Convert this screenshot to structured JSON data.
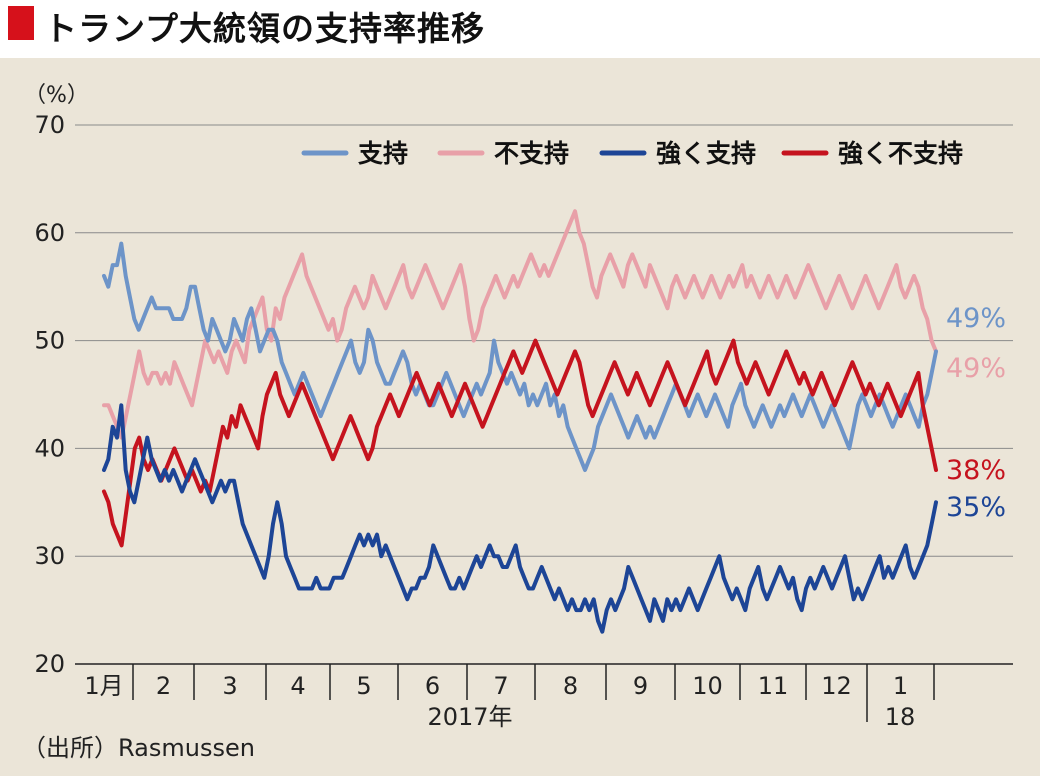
{
  "header": {
    "title": "トランプ大統領の支持率推移"
  },
  "source": "（出所）Rasmussen",
  "chart_data": {
    "type": "line",
    "title": "トランプ大統領の支持率推移",
    "unit_label": "（%）",
    "ylim": [
      20,
      70
    ],
    "y_ticks": [
      20,
      30,
      40,
      50,
      60,
      70
    ],
    "x_month_labels": [
      "1月",
      "2",
      "3",
      "4",
      "5",
      "6",
      "7",
      "8",
      "9",
      "10",
      "11",
      "12",
      "1"
    ],
    "x_year_labels": [
      "2017年",
      "18"
    ],
    "grid": true,
    "legend_position": "top-right",
    "series": [
      {
        "name": "支持",
        "color": "#6d94c8",
        "end_label": "49%",
        "values": [
          56,
          55,
          57,
          57,
          59,
          56,
          54,
          52,
          51,
          52,
          53,
          54,
          53,
          53,
          53,
          53,
          52,
          52,
          52,
          53,
          55,
          55,
          53,
          51,
          50,
          52,
          51,
          50,
          49,
          50,
          52,
          51,
          50,
          52,
          53,
          51,
          49,
          50,
          51,
          51,
          50,
          48,
          47,
          46,
          45,
          46,
          47,
          46,
          45,
          44,
          43,
          44,
          45,
          46,
          47,
          48,
          49,
          50,
          48,
          47,
          48,
          51,
          50,
          48,
          47,
          46,
          46,
          47,
          48,
          49,
          48,
          46,
          45,
          46,
          45,
          44,
          44,
          45,
          46,
          47,
          46,
          45,
          44,
          43,
          44,
          45,
          46,
          45,
          46,
          47,
          50,
          48,
          47,
          46,
          47,
          46,
          45,
          46,
          44,
          45,
          44,
          45,
          46,
          44,
          45,
          43,
          44,
          42,
          41,
          40,
          39,
          38,
          39,
          40,
          42,
          43,
          44,
          45,
          44,
          43,
          42,
          41,
          42,
          43,
          42,
          41,
          42,
          41,
          42,
          43,
          44,
          45,
          46,
          45,
          44,
          43,
          44,
          45,
          44,
          43,
          44,
          45,
          44,
          43,
          42,
          44,
          45,
          46,
          44,
          43,
          42,
          43,
          44,
          43,
          42,
          43,
          44,
          43,
          44,
          45,
          44,
          43,
          44,
          45,
          44,
          43,
          42,
          43,
          44,
          43,
          42,
          41,
          40,
          42,
          44,
          45,
          44,
          43,
          44,
          45,
          44,
          43,
          42,
          43,
          44,
          45,
          44,
          43,
          42,
          44,
          45,
          47,
          49
        ]
      },
      {
        "name": "不支持",
        "color": "#e8a0a8",
        "end_label": "49%",
        "values": [
          44,
          44,
          43,
          42,
          41,
          43,
          45,
          47,
          49,
          47,
          46,
          47,
          47,
          46,
          47,
          46,
          48,
          47,
          46,
          45,
          44,
          46,
          48,
          50,
          49,
          48,
          49,
          48,
          47,
          49,
          50,
          49,
          48,
          51,
          52,
          53,
          54,
          51,
          50,
          53,
          52,
          54,
          55,
          56,
          57,
          58,
          56,
          55,
          54,
          53,
          52,
          51,
          52,
          50,
          51,
          53,
          54,
          55,
          54,
          53,
          54,
          56,
          55,
          54,
          53,
          54,
          55,
          56,
          57,
          55,
          54,
          55,
          56,
          57,
          56,
          55,
          54,
          53,
          54,
          55,
          56,
          57,
          55,
          52,
          50,
          51,
          53,
          54,
          55,
          56,
          55,
          54,
          55,
          56,
          55,
          56,
          57,
          58,
          57,
          56,
          57,
          56,
          57,
          58,
          59,
          60,
          61,
          62,
          60,
          59,
          57,
          55,
          54,
          56,
          57,
          58,
          57,
          56,
          55,
          57,
          58,
          57,
          56,
          55,
          57,
          56,
          55,
          54,
          53,
          55,
          56,
          55,
          54,
          55,
          56,
          55,
          54,
          55,
          56,
          55,
          54,
          55,
          56,
          55,
          56,
          57,
          55,
          56,
          55,
          54,
          55,
          56,
          55,
          54,
          55,
          56,
          55,
          54,
          55,
          56,
          57,
          56,
          55,
          54,
          53,
          54,
          55,
          56,
          55,
          54,
          53,
          54,
          55,
          56,
          55,
          54,
          53,
          54,
          55,
          56,
          57,
          55,
          54,
          55,
          56,
          55,
          53,
          52,
          50,
          49
        ]
      },
      {
        "name": "強く支持",
        "color": "#1d4596",
        "end_label": "35%",
        "values": [
          38,
          39,
          42,
          41,
          44,
          38,
          36,
          35,
          37,
          39,
          41,
          39,
          38,
          37,
          38,
          37,
          38,
          37,
          36,
          37,
          38,
          39,
          38,
          37,
          36,
          35,
          36,
          37,
          36,
          37,
          37,
          35,
          33,
          32,
          31,
          30,
          29,
          28,
          30,
          33,
          35,
          33,
          30,
          29,
          28,
          27,
          27,
          27,
          27,
          28,
          27,
          27,
          27,
          28,
          28,
          28,
          29,
          30,
          31,
          32,
          31,
          32,
          31,
          32,
          30,
          31,
          30,
          29,
          28,
          27,
          26,
          27,
          27,
          28,
          28,
          29,
          31,
          30,
          29,
          28,
          27,
          27,
          28,
          27,
          28,
          29,
          30,
          29,
          30,
          31,
          30,
          30,
          29,
          29,
          30,
          31,
          29,
          28,
          27,
          27,
          28,
          29,
          28,
          27,
          26,
          27,
          26,
          25,
          26,
          25,
          25,
          26,
          25,
          26,
          24,
          23,
          25,
          26,
          25,
          26,
          27,
          29,
          28,
          27,
          26,
          25,
          24,
          26,
          25,
          24,
          26,
          25,
          26,
          25,
          26,
          27,
          26,
          25,
          26,
          27,
          28,
          29,
          30,
          28,
          27,
          26,
          27,
          26,
          25,
          27,
          28,
          29,
          27,
          26,
          27,
          28,
          29,
          28,
          27,
          28,
          26,
          25,
          27,
          28,
          27,
          28,
          29,
          28,
          27,
          28,
          29,
          30,
          28,
          26,
          27,
          26,
          27,
          28,
          29,
          30,
          28,
          29,
          28,
          29,
          30,
          31,
          29,
          28,
          29,
          30,
          31,
          33,
          35
        ]
      },
      {
        "name": "強く不支持",
        "color": "#c5131e",
        "end_label": "38%",
        "values": [
          36,
          35,
          33,
          32,
          31,
          34,
          37,
          40,
          41,
          39,
          38,
          39,
          38,
          37,
          38,
          39,
          40,
          39,
          38,
          37,
          38,
          37,
          36,
          37,
          36,
          38,
          40,
          42,
          41,
          43,
          42,
          44,
          43,
          42,
          41,
          40,
          43,
          45,
          46,
          47,
          45,
          44,
          43,
          44,
          45,
          46,
          45,
          44,
          43,
          42,
          41,
          40,
          39,
          40,
          41,
          42,
          43,
          42,
          41,
          40,
          39,
          40,
          42,
          43,
          44,
          45,
          44,
          43,
          44,
          45,
          46,
          47,
          46,
          45,
          44,
          45,
          46,
          45,
          44,
          43,
          44,
          45,
          46,
          45,
          44,
          43,
          42,
          43,
          44,
          45,
          46,
          47,
          48,
          49,
          48,
          47,
          48,
          49,
          50,
          49,
          48,
          47,
          46,
          45,
          46,
          47,
          48,
          49,
          48,
          46,
          44,
          43,
          44,
          45,
          46,
          47,
          48,
          47,
          46,
          45,
          46,
          47,
          46,
          45,
          44,
          45,
          46,
          47,
          48,
          47,
          46,
          45,
          44,
          45,
          46,
          47,
          48,
          49,
          47,
          46,
          47,
          48,
          49,
          50,
          48,
          47,
          46,
          47,
          48,
          47,
          46,
          45,
          46,
          47,
          48,
          49,
          48,
          47,
          46,
          47,
          46,
          45,
          46,
          47,
          46,
          45,
          44,
          45,
          46,
          47,
          48,
          47,
          46,
          45,
          46,
          45,
          44,
          45,
          46,
          45,
          44,
          43,
          44,
          45,
          46,
          47,
          44,
          42,
          40,
          38
        ]
      }
    ]
  }
}
